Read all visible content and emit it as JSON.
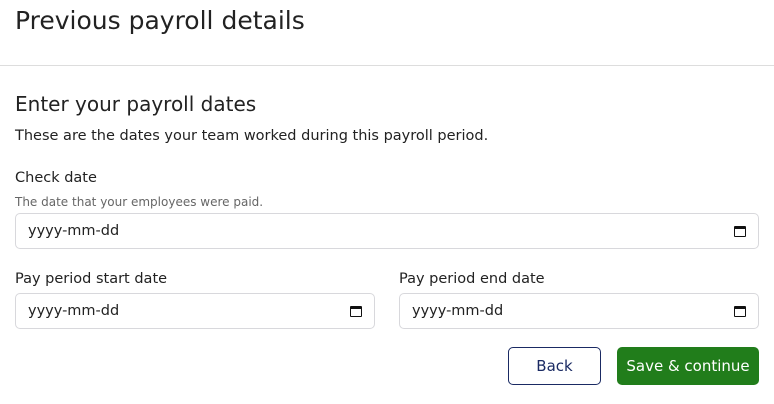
{
  "page_title": "Previous payroll details",
  "section_title": "Enter your payroll dates",
  "section_description": "These are the dates your team worked during this payroll period.",
  "check_date": {
    "label": "Check date",
    "hint": "The date that your employees were paid.",
    "placeholder": "yyyy-mm-dd"
  },
  "start_date": {
    "label": "Pay period start date",
    "placeholder": "yyyy-mm-dd"
  },
  "end_date": {
    "label": "Pay period end date",
    "placeholder": "yyyy-mm-dd"
  },
  "buttons": {
    "back": "Back",
    "save": "Save & continue"
  },
  "colors": {
    "primary": "#217d1b",
    "secondary_border": "#1a2a63"
  }
}
